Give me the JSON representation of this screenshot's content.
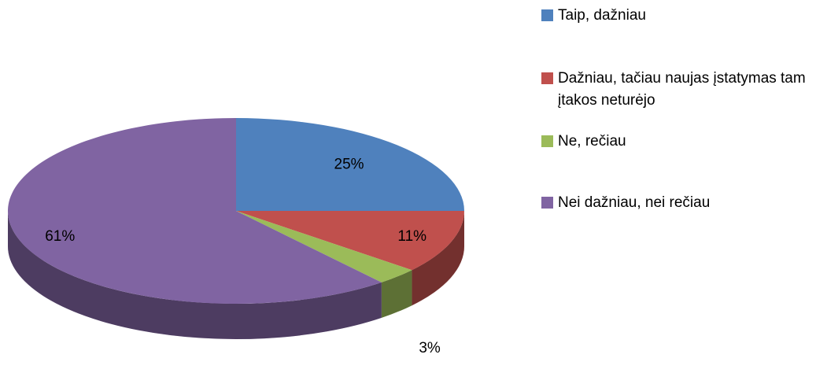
{
  "chart_data": {
    "type": "pie3d",
    "categories": [
      "Taip, dažniau",
      "Dažniau, tačiau naujas įstatymas tam įtakos neturėjo",
      "Ne, rečiau",
      "Nei dažniau, nei rečiau"
    ],
    "values": [
      25,
      11,
      3,
      61
    ],
    "value_labels": [
      "25%",
      "11%",
      "3%",
      "61%"
    ],
    "colors": [
      "#4f81bd",
      "#c0504d",
      "#9bbb59",
      "#8064a2"
    ],
    "legend": "right"
  }
}
